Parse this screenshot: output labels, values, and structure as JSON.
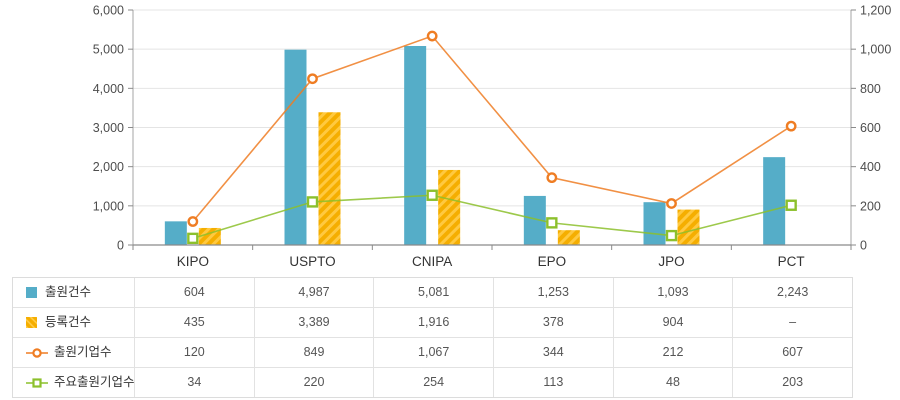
{
  "chart_data": {
    "type": "bar",
    "subtype": "bar-line-combo",
    "title": "",
    "categories": [
      "KIPO",
      "USPTO",
      "CNIPA",
      "EPO",
      "JPO",
      "PCT"
    ],
    "series": [
      {
        "name": "출원건수",
        "type": "bar",
        "axis": "left",
        "color": "#55ADC8",
        "style": "solid",
        "values": [
          604,
          4987,
          5081,
          1253,
          1093,
          2243
        ]
      },
      {
        "name": "등록건수",
        "type": "bar",
        "axis": "left",
        "color": "#F5AE00",
        "style": "hatched",
        "hatch_color": "#FFC940",
        "values": [
          435,
          3389,
          1916,
          378,
          904,
          null
        ]
      },
      {
        "name": "출원기업수",
        "type": "line",
        "axis": "right",
        "color": "#EF7D23",
        "marker": "circle",
        "values": [
          120,
          849,
          1067,
          344,
          212,
          607
        ]
      },
      {
        "name": "주요출원기업수",
        "type": "line",
        "axis": "right",
        "color": "#8CC02C",
        "marker": "square",
        "values": [
          34,
          220,
          254,
          113,
          48,
          203
        ]
      }
    ],
    "left_axis": {
      "min": 0,
      "max": 6000,
      "step": 1000,
      "tick_labels": [
        "6,000",
        "5,000",
        "4,000",
        "3,000",
        "2,000",
        "1,000",
        "0"
      ]
    },
    "right_axis": {
      "min": 0,
      "max": 1200,
      "step": 200,
      "tick_labels": [
        "1,200",
        "1,000",
        "800",
        "600",
        "400",
        "200",
        "0"
      ]
    },
    "grid": true,
    "legend_position": "table-below"
  },
  "table": {
    "rows": [
      {
        "icon": "blue-bar-swatch-icon",
        "label": "출원건수",
        "values": [
          "604",
          "4,987",
          "5,081",
          "1,253",
          "1,093",
          "2,243"
        ]
      },
      {
        "icon": "yellow-hatch-bar-swatch-icon",
        "label": "등록건수",
        "values": [
          "435",
          "3,389",
          "1,916",
          "378",
          "904",
          "–"
        ]
      },
      {
        "icon": "orange-line-circle-marker-icon",
        "label": "출원기업수",
        "values": [
          "120",
          "849",
          "1,067",
          "344",
          "212",
          "607"
        ]
      },
      {
        "icon": "green-line-square-marker-icon",
        "label": "주요출원기업수",
        "values": [
          "34",
          "220",
          "254",
          "113",
          "48",
          "203"
        ]
      }
    ]
  }
}
